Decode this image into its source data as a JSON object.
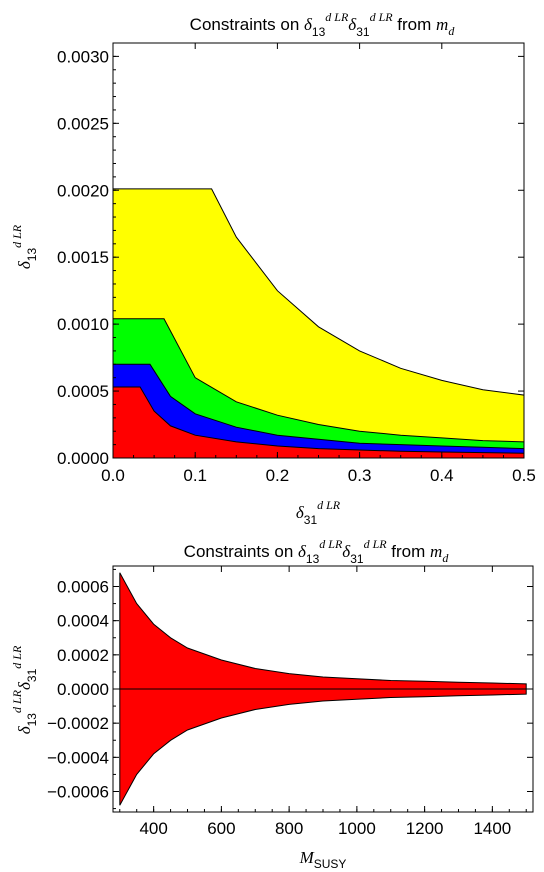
{
  "chart_data": [
    {
      "type": "area",
      "title": {
        "prefix": "Constraints on ",
        "delta_a_sub": "13",
        "delta_a_sup": "d LR",
        "delta_b_sub": "31",
        "delta_b_sup": "d LR",
        "middle": " from ",
        "mass_symbol": "m",
        "mass_sub": "d"
      },
      "xlabel": {
        "symbol": "δ",
        "sub": "31",
        "sup": "d LR"
      },
      "ylabel": {
        "symbol": "δ",
        "sub": "13",
        "sup": "d LR"
      },
      "xlim": [
        0.0,
        0.5
      ],
      "ylim": [
        0.0,
        0.0031
      ],
      "x_ticks": [
        0.0,
        0.1,
        0.2,
        0.3,
        0.4,
        0.5
      ],
      "x_tick_labels": [
        "0.0",
        "0.1",
        "0.2",
        "0.3",
        "0.4",
        "0.5"
      ],
      "y_ticks": [
        0.0,
        0.0005,
        0.001,
        0.0015,
        0.002,
        0.0025,
        0.003
      ],
      "y_tick_labels": [
        "0.0000",
        "0.0005",
        "0.0010",
        "0.0015",
        "0.0020",
        "0.0025",
        "0.0030"
      ],
      "grid": false,
      "series": [
        {
          "color": "#ffff00",
          "x": [
            0.0,
            0.12,
            0.15,
            0.2,
            0.25,
            0.3,
            0.35,
            0.4,
            0.45,
            0.5
          ],
          "values": [
            0.00201,
            0.00201,
            0.00165,
            0.00125,
            0.00098,
            0.0008,
            0.00067,
            0.00058,
            0.00051,
            0.00047
          ]
        },
        {
          "color": "#00ff00",
          "x": [
            0.0,
            0.062,
            0.1,
            0.15,
            0.2,
            0.25,
            0.3,
            0.35,
            0.4,
            0.45,
            0.5
          ],
          "values": [
            0.00104,
            0.00104,
            0.0006,
            0.00042,
            0.00032,
            0.00025,
            0.0002,
            0.00017,
            0.00015,
            0.00013,
            0.00012
          ]
        },
        {
          "color": "#0000ff",
          "x": [
            0.0,
            0.045,
            0.07,
            0.1,
            0.15,
            0.2,
            0.25,
            0.3,
            0.35,
            0.4,
            0.45,
            0.5
          ],
          "values": [
            0.0007,
            0.0007,
            0.00046,
            0.00033,
            0.00023,
            0.00017,
            0.00014,
            0.00011,
            0.0001,
            9e-05,
            8e-05,
            7e-05
          ]
        },
        {
          "color": "#ff0000",
          "x": [
            0.0,
            0.033,
            0.05,
            0.07,
            0.1,
            0.15,
            0.2,
            0.25,
            0.3,
            0.35,
            0.4,
            0.45,
            0.5
          ],
          "values": [
            0.00053,
            0.00053,
            0.00035,
            0.00024,
            0.00017,
            0.00012,
            9e-05,
            7e-05,
            6e-05,
            5e-05,
            4.5e-05,
            4e-05,
            3.5e-05
          ]
        }
      ]
    },
    {
      "type": "area",
      "title": {
        "prefix": "Constraints on ",
        "delta_a_sub": "13",
        "delta_a_sup": "d LR",
        "delta_b_sub": "31",
        "delta_b_sup": "d LR",
        "middle": " from ",
        "mass_symbol": "m",
        "mass_sub": "d"
      },
      "xlabel": {
        "symbol": "M",
        "sub": "SUSY"
      },
      "ylabel": {
        "symbol": "δ",
        "sub1": "13",
        "sup1": "d LR",
        "sub2": "31",
        "sup2": "d LR"
      },
      "xlim": [
        280,
        1520
      ],
      "ylim": [
        -0.00072,
        0.00072
      ],
      "x_ticks": [
        400,
        600,
        800,
        1000,
        1200,
        1400
      ],
      "x_tick_labels": [
        "400",
        "600",
        "800",
        "1000",
        "1200",
        "1400"
      ],
      "y_ticks": [
        -0.0006,
        -0.0004,
        -0.0002,
        0.0,
        0.0002,
        0.0004,
        0.0006
      ],
      "y_tick_labels": [
        "−0.0006",
        "−0.0004",
        "−0.0002",
        "0.0000",
        "0.0002",
        "0.0004",
        "0.0006"
      ],
      "grid": false,
      "series": [
        {
          "color": "#ff0000",
          "x": [
            300,
            350,
            400,
            450,
            500,
            600,
            700,
            800,
            900,
            1000,
            1100,
            1200,
            1300,
            1400,
            1500
          ],
          "upper": [
            0.00068,
            0.0005,
            0.00038,
            0.0003,
            0.00024,
            0.00017,
            0.00012,
            9e-05,
            7e-05,
            6e-05,
            5e-05,
            4.5e-05,
            4e-05,
            3.5e-05,
            3e-05
          ],
          "lower": [
            -0.00068,
            -0.0005,
            -0.00038,
            -0.0003,
            -0.00024,
            -0.00017,
            -0.00012,
            -9e-05,
            -7e-05,
            -6e-05,
            -5e-05,
            -4.5e-05,
            -4e-05,
            -3.5e-05,
            -3e-05
          ]
        }
      ]
    }
  ]
}
